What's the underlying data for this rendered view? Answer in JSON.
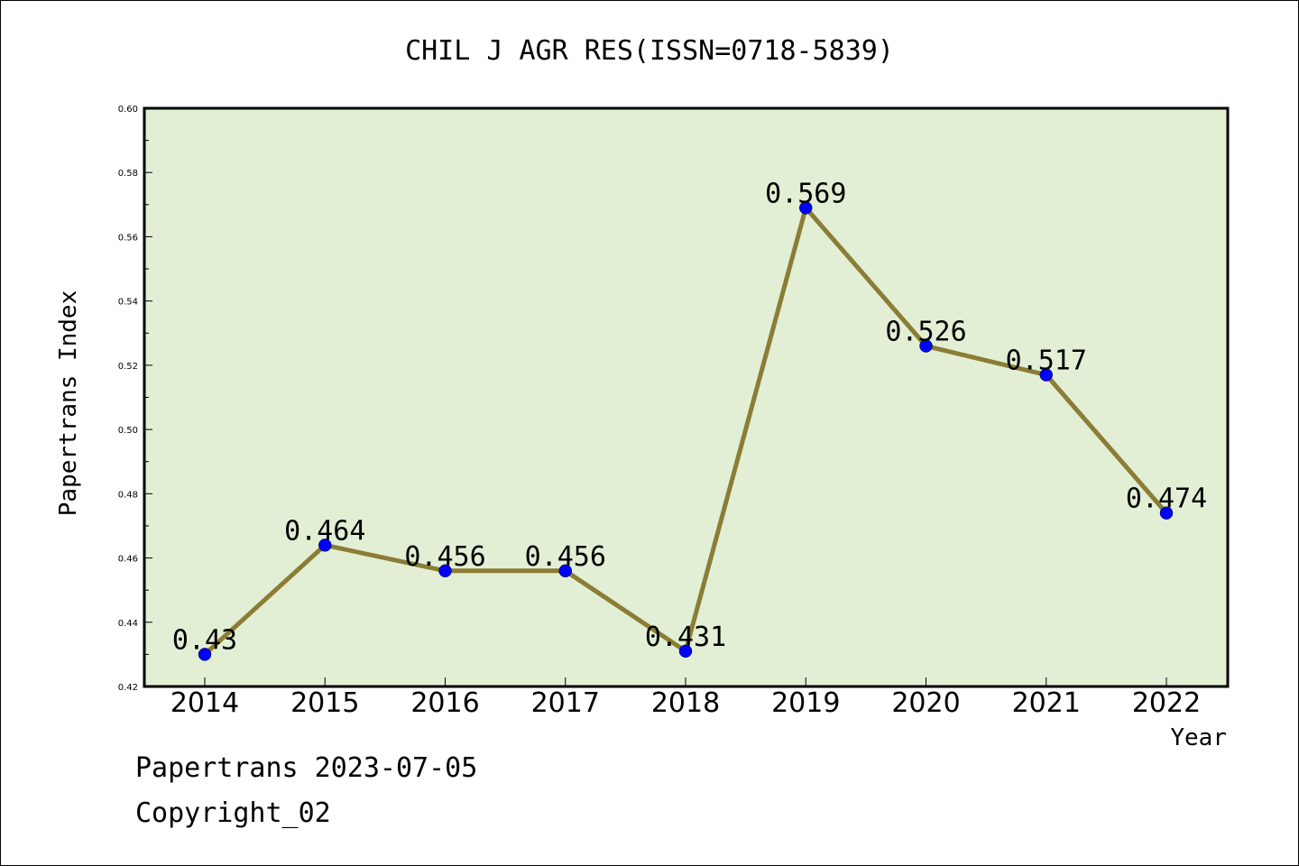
{
  "chart_data": {
    "type": "line",
    "title": "CHIL J AGR RES(ISSN=0718-5839)",
    "xlabel": "Year",
    "ylabel": "Papertrans Index",
    "categories": [
      "2014",
      "2015",
      "2016",
      "2017",
      "2018",
      "2019",
      "2020",
      "2021",
      "2022"
    ],
    "values": [
      0.43,
      0.464,
      0.456,
      0.456,
      0.431,
      0.569,
      0.526,
      0.517,
      0.474
    ],
    "data_labels": [
      "0.43",
      "0.464",
      "0.456",
      "0.456",
      "0.431",
      "0.569",
      "0.526",
      "0.517",
      "0.474"
    ],
    "ylim": [
      0.42,
      0.6
    ],
    "yticks": [
      "0.42",
      "0.44",
      "0.46",
      "0.48",
      "0.50",
      "0.52",
      "0.54",
      "0.56",
      "0.58",
      "0.60"
    ],
    "grid": false,
    "colors": {
      "plot_background": "#e2efd5",
      "line": "#8b7d35",
      "marker": "#0000ff"
    }
  },
  "footer": {
    "line1": "Papertrans 2023-07-05",
    "line2": "Copyright_02"
  }
}
